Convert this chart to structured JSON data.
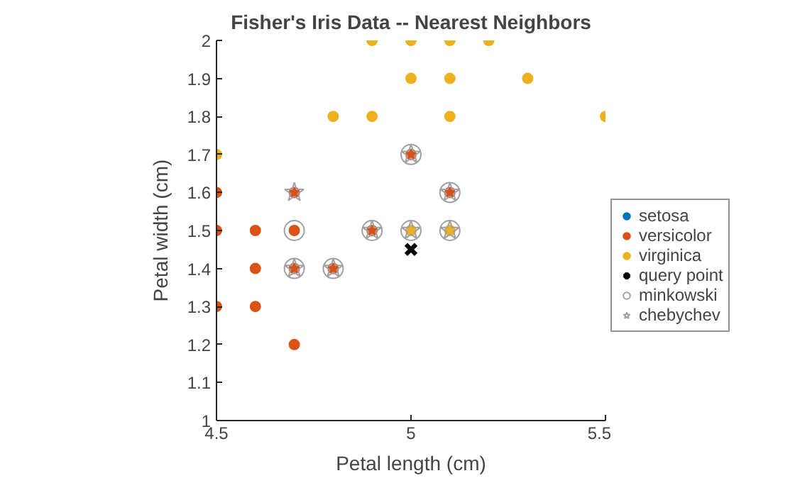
{
  "chart_data": {
    "type": "scatter",
    "title": "Fisher's Iris Data -- Nearest Neighbors",
    "xlabel": "Petal length (cm)",
    "ylabel": "Petal width (cm)",
    "xlim": [
      4.5,
      5.5
    ],
    "ylim": [
      1,
      2
    ],
    "xticks": [
      4.5,
      5,
      5.5
    ],
    "yticks": [
      1,
      1.1,
      1.2,
      1.3,
      1.4,
      1.5,
      1.6,
      1.7,
      1.8,
      1.9,
      2
    ],
    "grid": false,
    "legend": "bottom right",
    "series": [
      {
        "name": "setosa",
        "color": "#0072bd",
        "marker": "circle"
      },
      {
        "name": "versicolor",
        "color": "#d95319",
        "marker": "circle",
        "x": [
          4.5,
          4.5,
          4.5,
          4.6,
          4.6,
          4.6,
          4.7,
          4.7,
          4.7,
          4.7,
          4.8,
          4.9,
          5.0,
          5.1
        ],
        "values": [
          1.6,
          1.5,
          1.3,
          1.5,
          1.4,
          1.3,
          1.6,
          1.5,
          1.4,
          1.2,
          1.4,
          1.5,
          1.7,
          1.6
        ]
      },
      {
        "name": "virginica",
        "color": "#edb120",
        "marker": "circle",
        "x": [
          4.5,
          4.8,
          4.9,
          4.9,
          5.0,
          5.0,
          5.1,
          5.1,
          5.1,
          5.2,
          5.3,
          5.5,
          5.0,
          5.1
        ],
        "values": [
          1.7,
          1.8,
          1.8,
          2.0,
          2.0,
          1.9,
          2.0,
          1.9,
          1.8,
          2.0,
          1.9,
          1.8,
          1.5,
          1.5
        ]
      },
      {
        "name": "query point",
        "color": "#000000",
        "marker": "cross",
        "x": [
          5.0
        ],
        "values": [
          1.45
        ]
      },
      {
        "name": "minkowski",
        "color": "#a0a0a0",
        "marker": "circle",
        "x": [
          4.7,
          4.7,
          4.8,
          4.9,
          5.0,
          5.1,
          5.0,
          5.1
        ],
        "values": [
          1.5,
          1.4,
          1.4,
          1.5,
          1.5,
          1.5,
          1.7,
          1.6
        ]
      },
      {
        "name": "chebychev",
        "color": "#a0a0a0",
        "marker": "star",
        "x": [
          4.7,
          4.7,
          4.8,
          4.9,
          5.0,
          5.1,
          5.0,
          5.1
        ],
        "values": [
          1.6,
          1.4,
          1.4,
          1.5,
          1.5,
          1.5,
          1.7,
          1.6
        ]
      }
    ]
  }
}
